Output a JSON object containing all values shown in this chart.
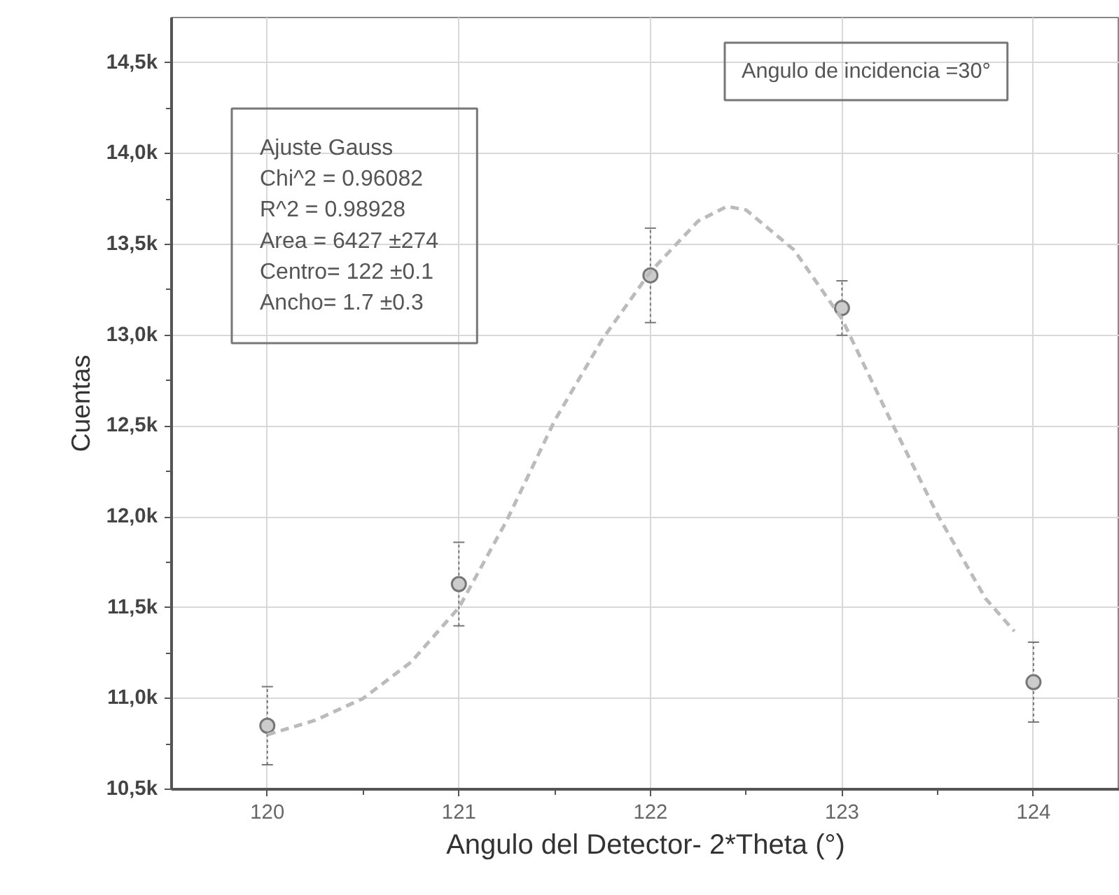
{
  "chart_data": {
    "type": "scatter",
    "xlabel": "Angulo del Detector- 2*Theta (°)",
    "ylabel": "Cuentas",
    "series": [
      {
        "color": "#777777",
        "marker": "circle",
        "x": [
          120,
          121,
          122,
          123,
          124
        ],
        "values": [
          10850,
          11630,
          13330,
          13150,
          11090
        ],
        "errors": [
          215,
          230,
          260,
          150,
          220
        ]
      },
      {
        "type": "line",
        "color": "#bbbbbb",
        "line_style": "dashed",
        "marker": "none",
        "x": [
          120,
          120.25,
          120.5,
          120.75,
          121,
          121.25,
          121.5,
          121.75,
          122,
          122.25,
          122.4,
          122.5,
          122.75,
          123,
          123.25,
          123.5,
          123.75,
          123.9
        ],
        "values": [
          10800,
          10880,
          11000,
          11200,
          11500,
          11980,
          12530,
          12980,
          13350,
          13630,
          13710,
          13690,
          13470,
          13090,
          12540,
          12010,
          11550,
          11370
        ]
      }
    ],
    "xlim": [
      119.5,
      124.45
    ],
    "ylim": [
      10500,
      14750
    ],
    "xticks": [
      120,
      121,
      122,
      123,
      124
    ],
    "yticks": [
      {
        "value": 10500,
        "label": "10,5k"
      },
      {
        "value": 11000,
        "label": "11,0k"
      },
      {
        "value": 11500,
        "label": "11,5k"
      },
      {
        "value": 12000,
        "label": "12,0k"
      },
      {
        "value": 12500,
        "label": "12,5k"
      },
      {
        "value": 13000,
        "label": "13,0k"
      },
      {
        "value": 13500,
        "label": "13,5k"
      },
      {
        "value": 14000,
        "label": "14,0k"
      },
      {
        "value": 14500,
        "label": "14,5k"
      }
    ],
    "grid": true,
    "annotations": [
      "Ajuste Gauss\nChi^2    =  0.96082\nR^2       =  0.98928\nArea = 6427 ±274\nCentro= 122 ±0.1\nAncho= 1.7 ±0.3",
      "Angulo de incidencia =30°"
    ]
  }
}
